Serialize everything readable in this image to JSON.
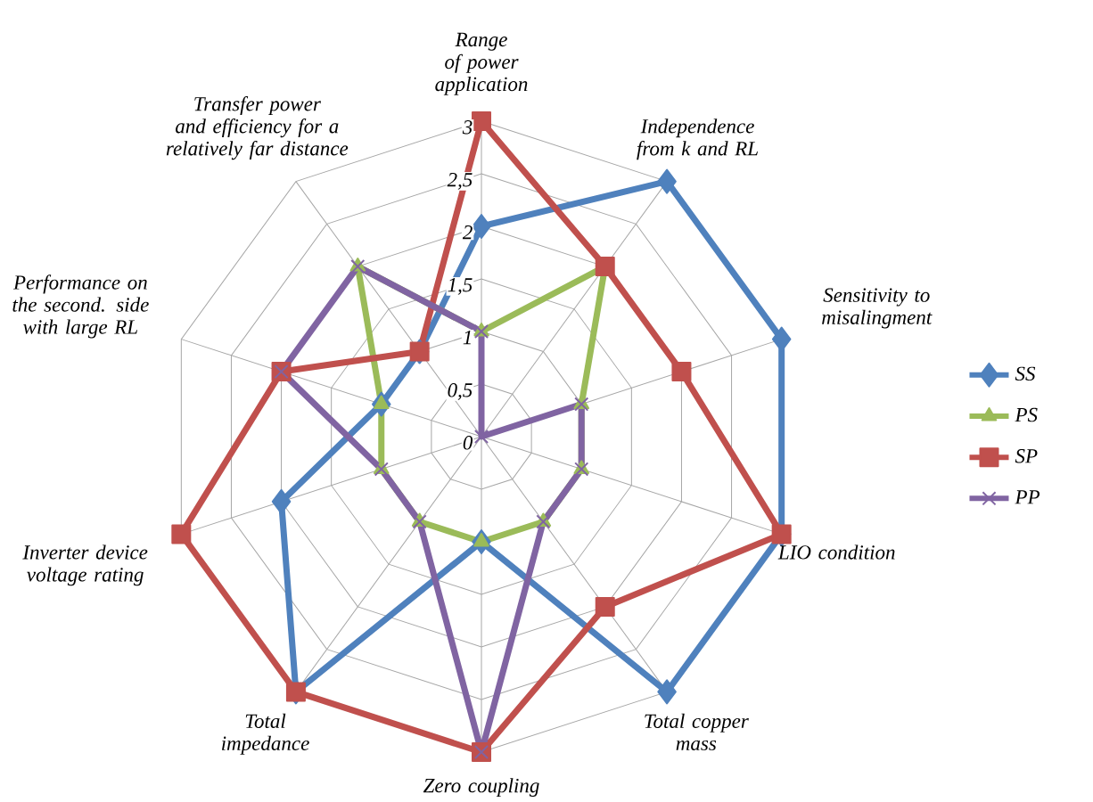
{
  "chart_data": {
    "type": "radar",
    "categories": [
      "Range of power application",
      "Independence from k and RL",
      "Sensitivity to misalingment",
      "LIO condition",
      "Total copper mass",
      "Zero coupling",
      "Total impedance",
      "Inverter device voltage rating",
      "Performance on the  second. side with large RL",
      "Transfer power and efficiency for a relatively far distance"
    ],
    "series": [
      {
        "name": "SS",
        "color": "#4f81bd",
        "marker": "diamond",
        "values": [
          2,
          3,
          3,
          3,
          3,
          1,
          3,
          2,
          1,
          1
        ]
      },
      {
        "name": "PS",
        "color": "#9bbb59",
        "marker": "triangle",
        "values": [
          1,
          2,
          1,
          1,
          1,
          1,
          1,
          1,
          1,
          2
        ]
      },
      {
        "name": "SP",
        "color": "#c0504d",
        "marker": "square",
        "values": [
          3,
          2,
          2,
          3,
          2,
          3,
          3,
          3,
          2,
          1
        ]
      },
      {
        "name": "PP",
        "color": "#8064a2",
        "marker": "cross",
        "values": [
          1,
          0,
          1,
          1,
          1,
          3,
          1,
          1,
          2,
          2
        ]
      }
    ],
    "ylim": [
      0,
      3
    ],
    "yticks": [
      0,
      {
        "value": 0.5,
        "label": "0,5"
      },
      1,
      {
        "value": 1.5,
        "label": "1,5"
      },
      2,
      {
        "value": 2.5,
        "label": "2,5"
      },
      3
    ],
    "grid": true,
    "legend": "right"
  }
}
